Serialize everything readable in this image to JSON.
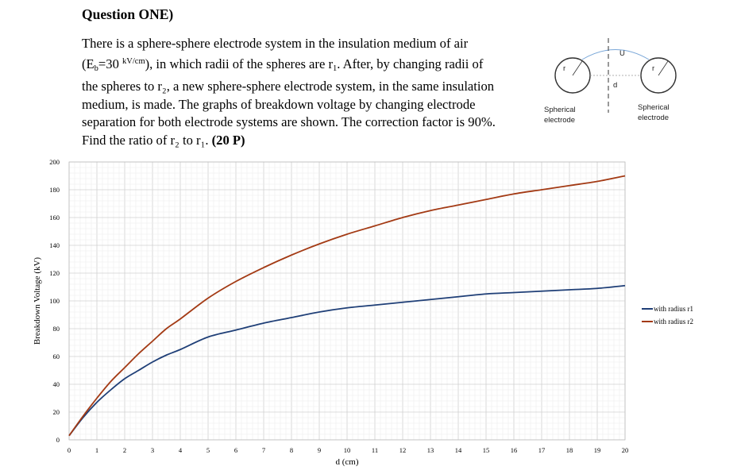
{
  "question": {
    "title": "Question ONE)",
    "lines": [
      "There is a sphere-sphere electrode system in the insulation medium of air",
      "the spheres to r₂, a new sphere-sphere electrode system, in the same insulation",
      "medium, is made. The graphs of breakdown voltage by changing electrode",
      "separation for both electrode systems are shown. The correction factor is 90%."
    ],
    "line2_parts": {
      "a": "(E",
      "b_sub": "b",
      "c": "=30 ",
      "d_sup": "kV/cm",
      "e": "), in which radii of the spheres are r",
      "f_sub": "1",
      "g": ". After, by changing radii of"
    },
    "last_line": "Find the ratio of r₂ to r₁. ",
    "points": "(20 P)"
  },
  "diagram": {
    "left_label": [
      "Spherical",
      "electrode"
    ],
    "right_label": [
      "Spherical",
      "electrode"
    ],
    "radius_label": "r",
    "voltage_label": "U",
    "gap_label": "d"
  },
  "chart_data": {
    "type": "line",
    "xlabel": "d (cm)",
    "ylabel": "Breakdown Voltage (kV)",
    "xlim": [
      0,
      20
    ],
    "ylim": [
      0,
      200
    ],
    "xticks": [
      0,
      1,
      2,
      3,
      4,
      5,
      6,
      7,
      8,
      9,
      10,
      11,
      12,
      13,
      14,
      15,
      16,
      17,
      18,
      19,
      20
    ],
    "yticks": [
      0,
      20,
      40,
      60,
      80,
      100,
      120,
      140,
      160,
      180,
      200
    ],
    "grid": true,
    "legend_position": "right",
    "series": [
      {
        "name": "with radius r1",
        "color": "#1f3f77",
        "x": [
          0,
          0.5,
          1,
          1.5,
          2,
          2.5,
          3,
          3.5,
          4,
          5,
          6,
          7,
          8,
          9,
          10,
          11,
          12,
          13,
          14,
          15,
          16,
          17,
          18,
          19,
          20
        ],
        "y": [
          3,
          16,
          27,
          36,
          44,
          50,
          56,
          61,
          65,
          74,
          79,
          84,
          88,
          92,
          95,
          97,
          99,
          101,
          103,
          105,
          106,
          107,
          108,
          109,
          111
        ]
      },
      {
        "name": "with radius r2",
        "color": "#a33a14",
        "x": [
          0,
          0.5,
          1,
          1.5,
          2,
          2.5,
          3,
          3.5,
          4,
          5,
          6,
          7,
          8,
          9,
          10,
          11,
          12,
          13,
          14,
          15,
          16,
          17,
          18,
          19,
          20
        ],
        "y": [
          3,
          17,
          30,
          42,
          52,
          62,
          71,
          80,
          87,
          102,
          114,
          124,
          133,
          141,
          148,
          154,
          160,
          165,
          169,
          173,
          177,
          180,
          183,
          186,
          190
        ]
      }
    ]
  }
}
